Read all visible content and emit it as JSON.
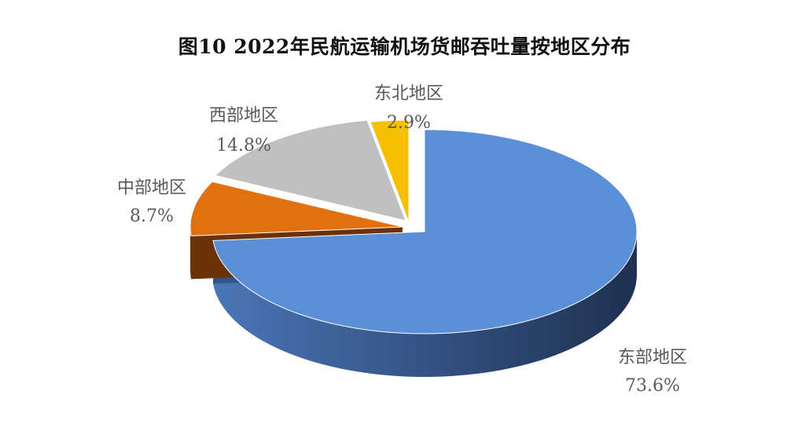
{
  "chart_data": {
    "type": "pie",
    "title": "图10  2022年民航运输机场货邮吞吐量按地区分布",
    "slices": [
      {
        "name": "东部地区",
        "value": 73.6,
        "label": "73.6%",
        "color": "#5b8fd6",
        "side_color": "#34558a"
      },
      {
        "name": "中部地区",
        "value": 8.7,
        "label": "8.7%",
        "color": "#e07010",
        "side_color": "#6a3206"
      },
      {
        "name": "西部地区",
        "value": 14.8,
        "label": "14.8%",
        "color": "#c0c0c0",
        "side_color": "#7a7a7a"
      },
      {
        "name": "东北地区",
        "value": 2.9,
        "label": "2.9%",
        "color": "#f5c000",
        "side_color": "#8a6a00"
      }
    ]
  }
}
